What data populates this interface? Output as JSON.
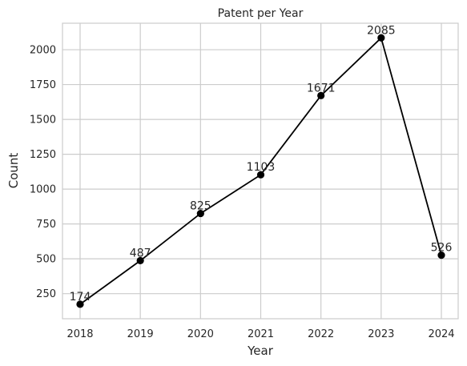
{
  "chart_data": {
    "type": "line",
    "title": "Patent per Year",
    "xlabel": "Year",
    "ylabel": "Count",
    "x": [
      "2018",
      "2019",
      "2020",
      "2021",
      "2022",
      "2023",
      "2024"
    ],
    "values": [
      174,
      487,
      825,
      1103,
      1671,
      2085,
      526
    ],
    "data_labels": [
      "174",
      "487",
      "825",
      "1103",
      "1671",
      "2085",
      "526"
    ],
    "yticks": [
      250,
      500,
      750,
      1000,
      1250,
      1500,
      1750,
      2000
    ],
    "ylim": [
      70,
      2190
    ],
    "grid": true,
    "line_color": "#000000",
    "marker": "circle"
  }
}
